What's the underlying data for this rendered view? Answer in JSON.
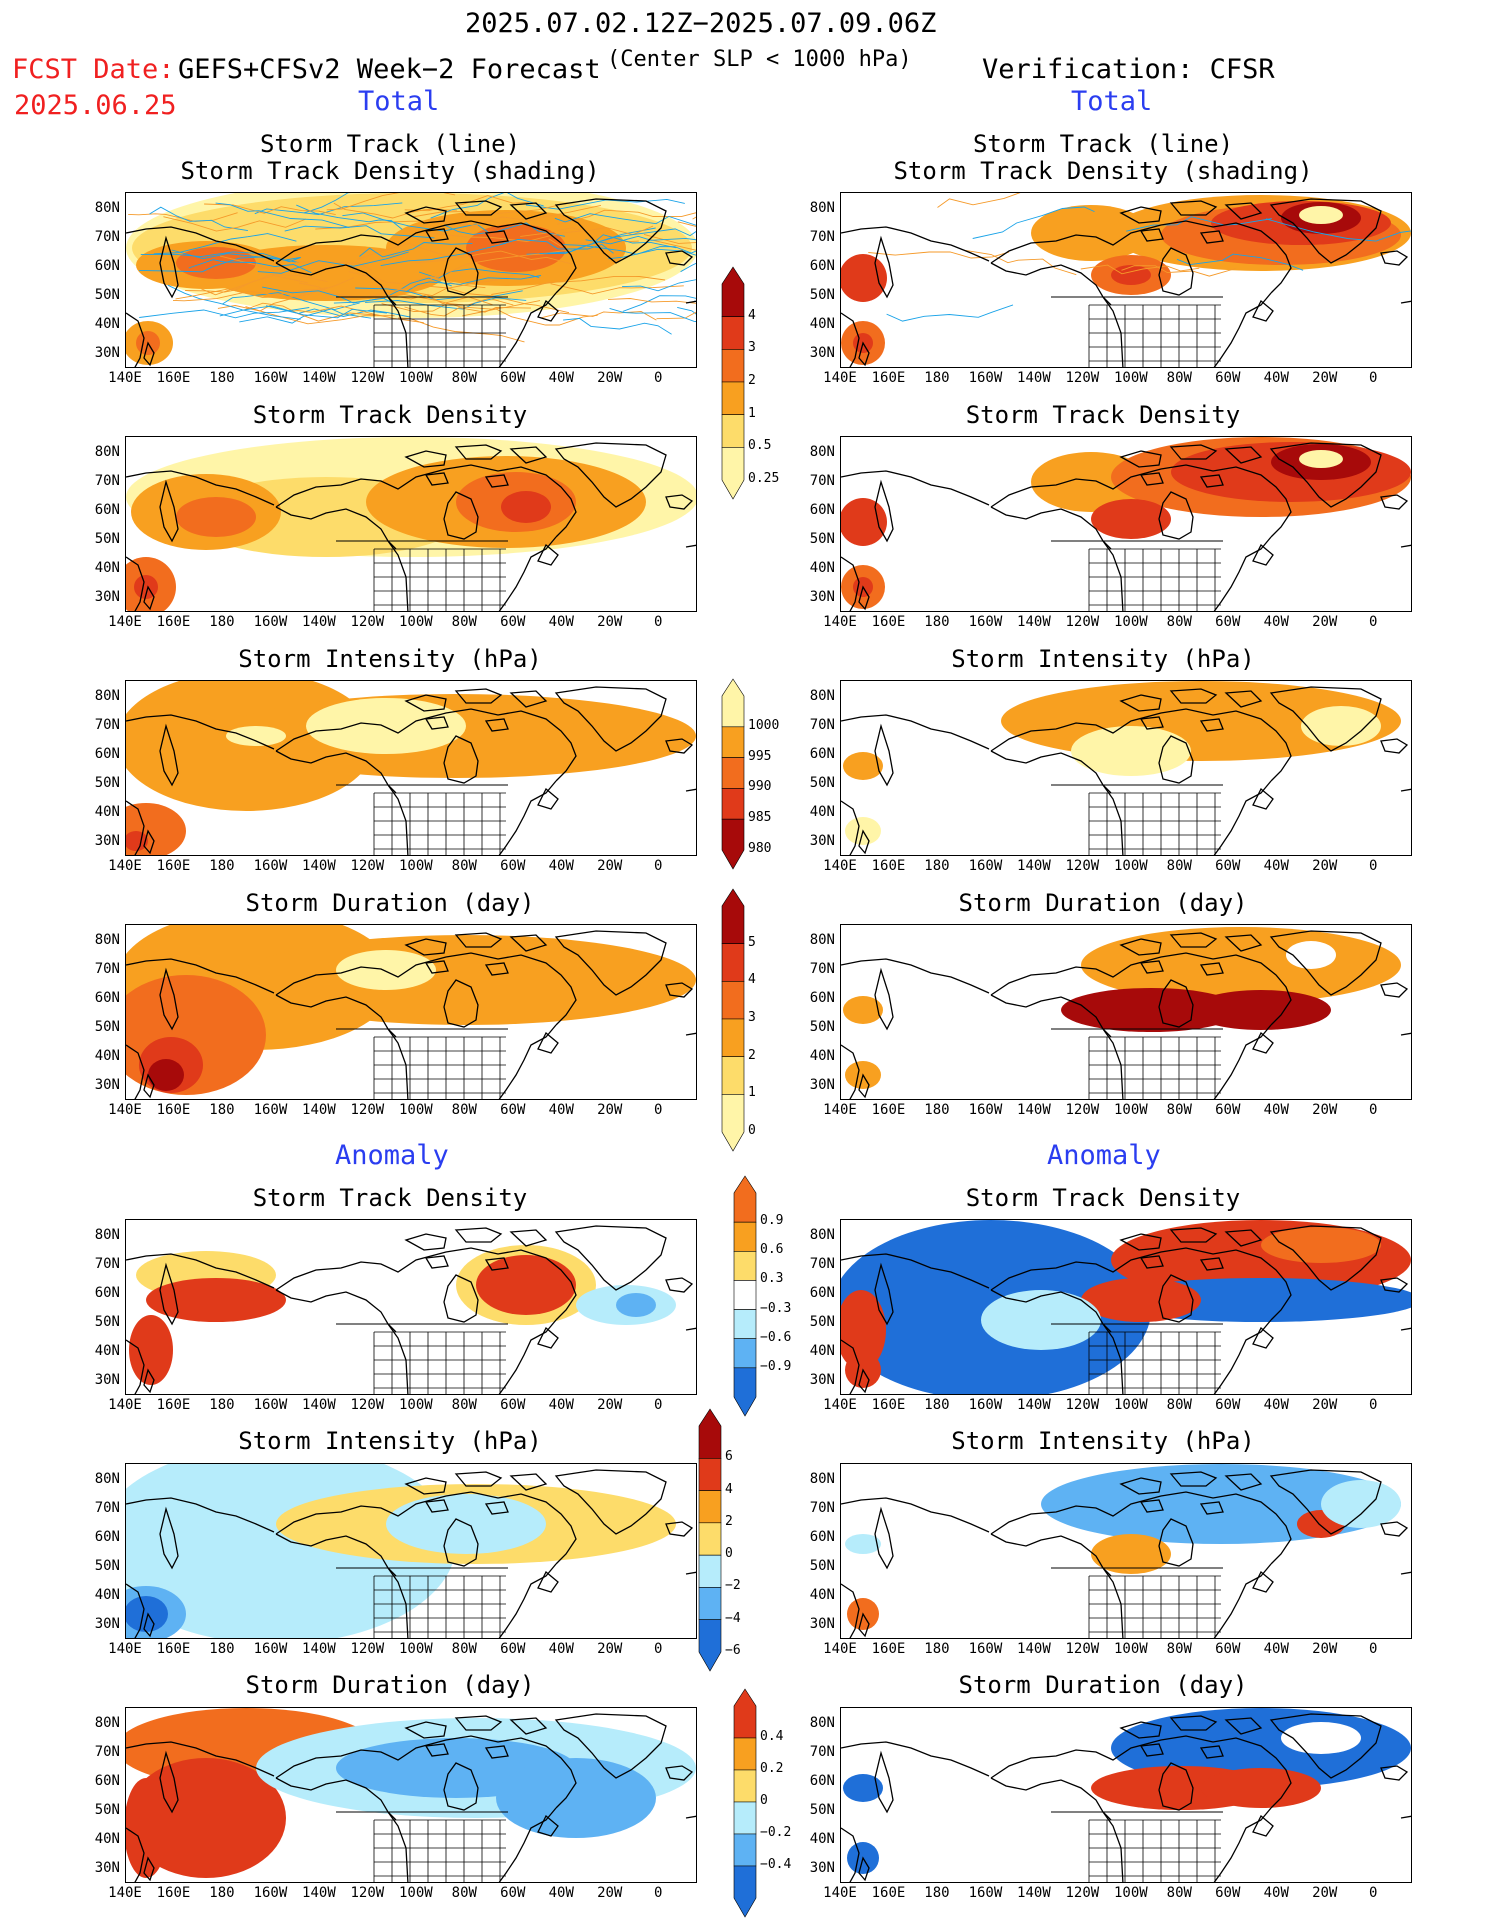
{
  "header": {
    "period": "2025.07.02.12Z−2025.07.09.06Z",
    "fcst_label": "FCST Date:",
    "fcst_date": "2025.06.25",
    "model": "GEFS+CFSv2 Week−2 Forecast",
    "criterion": "(Center SLP < 1000 hPa)",
    "verification": "Verification: CFSR"
  },
  "sections": {
    "total_left": "Total",
    "total_right": "Total",
    "anom_left": "Anomaly",
    "anom_right": "Anomaly"
  },
  "panel_titles": {
    "track_line": "Storm Track (line)",
    "track_density_shading": "Storm Track Density (shading)",
    "density": "Storm Track Density",
    "intensity": "Storm Intensity (hPa)",
    "duration": "Storm Duration (day)"
  },
  "axes": {
    "lat_ticks": [
      "80N",
      "70N",
      "60N",
      "50N",
      "40N",
      "30N"
    ],
    "lon_ticks": [
      "140E",
      "160E",
      "180",
      "160W",
      "140W",
      "120W",
      "100W",
      "80W",
      "60W",
      "40W",
      "20W",
      "0"
    ]
  },
  "colorbars": {
    "density_total": [
      "4",
      "3",
      "2",
      "1",
      "0.5",
      "0.25"
    ],
    "intensity_total": [
      "1000",
      "995",
      "990",
      "985",
      "980"
    ],
    "duration_total": [
      "5",
      "4",
      "3",
      "2",
      "1",
      "0"
    ],
    "density_anom": [
      "0.9",
      "0.6",
      "0.3",
      "−0.3",
      "−0.6",
      "−0.9"
    ],
    "intensity_anom": [
      "6",
      "4",
      "2",
      "0",
      "−2",
      "−4",
      "−6"
    ],
    "duration_anom": [
      "0.4",
      "0.2",
      "0",
      "−0.2",
      "−0.4"
    ]
  },
  "colors": {
    "pale_yellow": "#fff5a8",
    "yellow": "#fddc6a",
    "orange": "#f8a020",
    "dark_orange": "#f26d1e",
    "red": "#e03a1a",
    "dark_red": "#a70a0a",
    "light_blue": "#b6ecfb",
    "mid_blue": "#5eb2f3",
    "blue": "#1f6fd8",
    "track_blue": "#1aa3e8",
    "track_orange": "#f59a2a"
  }
}
